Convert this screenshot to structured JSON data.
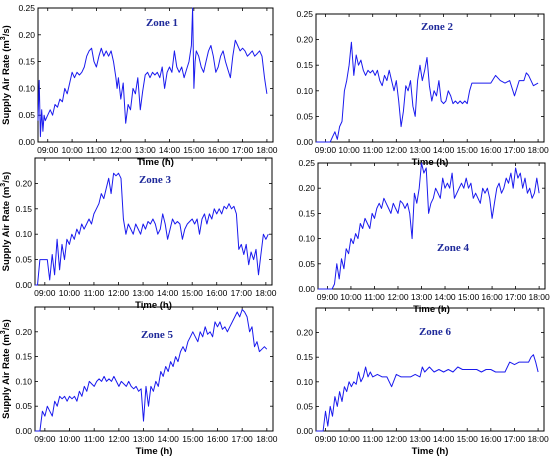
{
  "chart_data": [
    {
      "type": "line",
      "title": "Zone 1",
      "xlabel": "Time (h)",
      "ylabel": "Supply Air Rate (m³/s)",
      "ylabel_base": "Supply Air Rate (m",
      "ylabel_sup": "3",
      "ylabel_tail": "/s)",
      "xlim": [
        8.6,
        18.25
      ],
      "ylim": [
        0,
        0.25
      ],
      "xticks": [
        9,
        10,
        11,
        12,
        13,
        14,
        15,
        16,
        17,
        18
      ],
      "xtick_labels": [
        "09:00",
        "10:00",
        "11:00",
        "12:00",
        "13:00",
        "14:00",
        "15:00",
        "16:00",
        "17:00",
        "18:00"
      ],
      "yticks": [
        0,
        0.05,
        0.1,
        0.15,
        0.2,
        0.25
      ],
      "ytick_labels": [
        "0.00",
        "0.05",
        "0.10",
        "0.15",
        "0.20",
        "0.25"
      ],
      "x": [
        8.6,
        8.65,
        8.7,
        8.75,
        8.8,
        8.85,
        8.9,
        9.0,
        9.1,
        9.2,
        9.3,
        9.4,
        9.5,
        9.6,
        9.7,
        9.8,
        9.9,
        10.0,
        10.1,
        10.2,
        10.3,
        10.4,
        10.5,
        10.6,
        10.7,
        10.8,
        10.9,
        11.0,
        11.1,
        11.2,
        11.3,
        11.4,
        11.5,
        11.6,
        11.7,
        11.8,
        11.85,
        11.9,
        12.0,
        12.1,
        12.2,
        12.3,
        12.4,
        12.5,
        12.6,
        12.7,
        12.8,
        12.9,
        13.0,
        13.1,
        13.2,
        13.3,
        13.4,
        13.5,
        13.6,
        13.7,
        13.8,
        13.9,
        14.0,
        14.1,
        14.2,
        14.3,
        14.4,
        14.5,
        14.6,
        14.7,
        14.8,
        14.9,
        14.95,
        15.0,
        15.05,
        15.1,
        15.2,
        15.3,
        15.4,
        15.5,
        15.6,
        15.7,
        15.8,
        15.9,
        16.0,
        16.1,
        16.2,
        16.3,
        16.4,
        16.5,
        16.6,
        16.7,
        16.8,
        16.9,
        17.0,
        17.1,
        17.2,
        17.3,
        17.4,
        17.5,
        17.6,
        17.7,
        17.8,
        17.9,
        18.0
      ],
      "y": [
        0.04,
        0.115,
        0.01,
        0.06,
        0.02,
        0.05,
        0.04,
        0.05,
        0.06,
        0.05,
        0.07,
        0.065,
        0.08,
        0.075,
        0.1,
        0.09,
        0.11,
        0.13,
        0.12,
        0.13,
        0.125,
        0.13,
        0.14,
        0.16,
        0.17,
        0.175,
        0.15,
        0.14,
        0.16,
        0.175,
        0.16,
        0.17,
        0.16,
        0.17,
        0.15,
        0.12,
        0.1,
        0.12,
        0.08,
        0.11,
        0.035,
        0.07,
        0.06,
        0.1,
        0.09,
        0.12,
        0.06,
        0.095,
        0.125,
        0.13,
        0.12,
        0.13,
        0.125,
        0.13,
        0.12,
        0.14,
        0.1,
        0.13,
        0.14,
        0.13,
        0.17,
        0.14,
        0.13,
        0.14,
        0.12,
        0.135,
        0.15,
        0.18,
        0.25,
        0.1,
        0.15,
        0.17,
        0.16,
        0.14,
        0.13,
        0.15,
        0.17,
        0.18,
        0.16,
        0.13,
        0.14,
        0.16,
        0.17,
        0.15,
        0.135,
        0.12,
        0.16,
        0.19,
        0.18,
        0.17,
        0.175,
        0.17,
        0.16,
        0.165,
        0.17,
        0.16,
        0.165,
        0.17,
        0.16,
        0.12,
        0.09
      ]
    },
    {
      "type": "line",
      "title": "Zone 2",
      "xlabel": "Time (h)",
      "ylabel": "",
      "xlim": [
        8.6,
        18.25
      ],
      "ylim": [
        0,
        0.25
      ],
      "xticks": [
        9,
        10,
        11,
        12,
        13,
        14,
        15,
        16,
        17,
        18
      ],
      "xtick_labels": [
        "09:00",
        "10:00",
        "11:00",
        "12:00",
        "13:00",
        "14:00",
        "15:00",
        "16:00",
        "17:00",
        "18:00"
      ],
      "yticks": [
        0,
        0.05,
        0.1,
        0.15,
        0.2,
        0.25
      ],
      "ytick_labels": [
        "0.00",
        "0.05",
        "0.10",
        "0.15",
        "0.20",
        "0.25"
      ],
      "x": [
        8.6,
        9.2,
        9.3,
        9.4,
        9.5,
        9.6,
        9.7,
        9.8,
        9.9,
        10.0,
        10.1,
        10.2,
        10.3,
        10.4,
        10.5,
        10.6,
        10.7,
        10.8,
        10.9,
        11.0,
        11.1,
        11.2,
        11.3,
        11.4,
        11.5,
        11.6,
        11.7,
        11.8,
        11.9,
        12.0,
        12.1,
        12.2,
        12.3,
        12.4,
        12.5,
        12.6,
        12.7,
        12.8,
        12.9,
        13.0,
        13.1,
        13.2,
        13.3,
        13.4,
        13.5,
        13.6,
        13.7,
        13.8,
        13.9,
        14.0,
        14.1,
        14.2,
        14.3,
        14.4,
        14.5,
        14.6,
        14.7,
        14.8,
        14.9,
        15.0,
        15.1,
        15.2,
        16.0,
        16.2,
        16.4,
        16.6,
        16.8,
        17.0,
        17.2,
        17.4,
        17.5,
        17.6,
        17.8,
        18.0
      ],
      "y": [
        0,
        0,
        0.01,
        0.02,
        0.005,
        0.03,
        0.04,
        0.1,
        0.12,
        0.15,
        0.195,
        0.13,
        0.17,
        0.15,
        0.16,
        0.14,
        0.13,
        0.14,
        0.135,
        0.14,
        0.13,
        0.14,
        0.12,
        0.11,
        0.13,
        0.12,
        0.14,
        0.12,
        0.1,
        0.12,
        0.08,
        0.03,
        0.06,
        0.11,
        0.1,
        0.12,
        0.07,
        0.05,
        0.12,
        0.15,
        0.12,
        0.14,
        0.165,
        0.11,
        0.08,
        0.1,
        0.09,
        0.12,
        0.08,
        0.075,
        0.08,
        0.1,
        0.09,
        0.075,
        0.08,
        0.075,
        0.08,
        0.075,
        0.08,
        0.075,
        0.1,
        0.115,
        0.115,
        0.13,
        0.12,
        0.115,
        0.12,
        0.09,
        0.12,
        0.12,
        0.135,
        0.13,
        0.11,
        0.115
      ]
    },
    {
      "type": "line",
      "title": "Zone 3",
      "xlabel": "Time (h)",
      "ylabel": "Supply Air Rate (m³/s)",
      "ylabel_base": "Supply Air Rate (m",
      "ylabel_sup": "3",
      "ylabel_tail": "/s)",
      "xlim": [
        8.6,
        18.25
      ],
      "ylim": [
        0,
        0.25
      ],
      "xticks": [
        9,
        10,
        11,
        12,
        13,
        14,
        15,
        16,
        17,
        18
      ],
      "xtick_labels": [
        "09:00",
        "10:00",
        "11:00",
        "12:00",
        "13:00",
        "14:00",
        "15:00",
        "16:00",
        "17:00",
        "18:00"
      ],
      "yticks": [
        0,
        0.05,
        0.1,
        0.15,
        0.2
      ],
      "ytick_labels": [
        "0.00",
        "0.05",
        "0.10",
        "0.15",
        "0.20"
      ],
      "x": [
        8.6,
        8.7,
        8.8,
        9.0,
        9.1,
        9.2,
        9.3,
        9.4,
        9.5,
        9.6,
        9.7,
        9.8,
        9.9,
        10.0,
        10.1,
        10.2,
        10.3,
        10.4,
        10.5,
        10.6,
        10.7,
        10.8,
        10.9,
        11.0,
        11.1,
        11.2,
        11.3,
        11.4,
        11.5,
        11.6,
        11.7,
        11.8,
        11.9,
        12.0,
        12.1,
        12.2,
        12.3,
        12.4,
        12.5,
        12.6,
        12.7,
        12.8,
        12.9,
        13.0,
        13.1,
        13.2,
        13.3,
        13.4,
        13.5,
        13.6,
        13.7,
        13.8,
        13.9,
        14.0,
        14.1,
        14.2,
        14.3,
        14.4,
        14.5,
        14.6,
        14.7,
        14.8,
        14.9,
        15.0,
        15.1,
        15.2,
        15.3,
        15.4,
        15.5,
        15.6,
        15.7,
        15.8,
        15.9,
        16.0,
        16.1,
        16.2,
        16.3,
        16.4,
        16.5,
        16.6,
        16.7,
        16.8,
        16.9,
        17.0,
        17.1,
        17.2,
        17.3,
        17.4,
        17.5,
        17.6,
        17.7,
        17.8,
        17.9,
        18.0,
        18.1
      ],
      "y": [
        0,
        0,
        0.05,
        0.05,
        0.05,
        0.01,
        0.06,
        0.02,
        0.09,
        0.03,
        0.08,
        0.05,
        0.09,
        0.08,
        0.1,
        0.09,
        0.11,
        0.1,
        0.12,
        0.11,
        0.12,
        0.13,
        0.12,
        0.14,
        0.15,
        0.16,
        0.18,
        0.17,
        0.19,
        0.21,
        0.18,
        0.22,
        0.215,
        0.22,
        0.21,
        0.13,
        0.1,
        0.12,
        0.11,
        0.1,
        0.12,
        0.11,
        0.1,
        0.12,
        0.11,
        0.125,
        0.12,
        0.13,
        0.12,
        0.1,
        0.11,
        0.14,
        0.12,
        0.09,
        0.11,
        0.13,
        0.12,
        0.125,
        0.12,
        0.09,
        0.11,
        0.12,
        0.125,
        0.13,
        0.12,
        0.13,
        0.1,
        0.13,
        0.14,
        0.12,
        0.14,
        0.13,
        0.15,
        0.14,
        0.15,
        0.14,
        0.155,
        0.15,
        0.16,
        0.15,
        0.155,
        0.14,
        0.07,
        0.08,
        0.06,
        0.08,
        0.04,
        0.065,
        0.05,
        0.07,
        0.02,
        0.06,
        0.1,
        0.09,
        0.1
      ]
    },
    {
      "type": "line",
      "title": "Zone 4",
      "xlabel": "Time (h)",
      "ylabel": "",
      "xlim": [
        8.6,
        18.25
      ],
      "ylim": [
        0,
        0.25
      ],
      "xticks": [
        9,
        10,
        11,
        12,
        13,
        14,
        15,
        16,
        17,
        18
      ],
      "xtick_labels": [
        "09:00",
        "10:00",
        "11:00",
        "12:00",
        "13:00",
        "14:00",
        "15:00",
        "16:00",
        "17:00",
        "18:00"
      ],
      "yticks": [
        0,
        0.05,
        0.1,
        0.15,
        0.2,
        0.25
      ],
      "ytick_labels": [
        "0.00",
        "0.05",
        "0.10",
        "0.15",
        "0.20",
        "0.25"
      ],
      "x": [
        8.6,
        9.2,
        9.3,
        9.4,
        9.5,
        9.6,
        9.7,
        9.8,
        9.9,
        10.0,
        10.1,
        10.2,
        10.3,
        10.4,
        10.5,
        10.6,
        10.7,
        10.8,
        10.9,
        11.0,
        11.1,
        11.2,
        11.3,
        11.4,
        11.5,
        11.6,
        11.7,
        11.8,
        11.9,
        12.0,
        12.1,
        12.2,
        12.3,
        12.4,
        12.5,
        12.6,
        12.7,
        12.8,
        12.9,
        13.0,
        13.1,
        13.2,
        13.3,
        13.4,
        13.5,
        13.6,
        13.7,
        13.8,
        13.9,
        14.0,
        14.1,
        14.2,
        14.3,
        14.4,
        14.5,
        14.6,
        14.7,
        14.8,
        14.9,
        15.0,
        15.1,
        15.2,
        15.3,
        15.4,
        15.5,
        15.6,
        15.7,
        15.8,
        15.9,
        16.0,
        16.1,
        16.2,
        16.3,
        16.4,
        16.5,
        16.6,
        16.7,
        16.8,
        16.9,
        17.0,
        17.1,
        17.2,
        17.3,
        17.4,
        17.5,
        17.6,
        17.7,
        17.8,
        17.9,
        18.0
      ],
      "y": [
        0,
        0,
        0.01,
        0.05,
        0.02,
        0.06,
        0.04,
        0.08,
        0.07,
        0.1,
        0.09,
        0.11,
        0.1,
        0.13,
        0.12,
        0.14,
        0.13,
        0.12,
        0.15,
        0.14,
        0.16,
        0.17,
        0.16,
        0.18,
        0.17,
        0.16,
        0.15,
        0.17,
        0.16,
        0.15,
        0.175,
        0.17,
        0.16,
        0.17,
        0.15,
        0.1,
        0.19,
        0.17,
        0.2,
        0.25,
        0.23,
        0.24,
        0.15,
        0.17,
        0.18,
        0.2,
        0.19,
        0.18,
        0.22,
        0.2,
        0.21,
        0.2,
        0.23,
        0.18,
        0.19,
        0.2,
        0.21,
        0.2,
        0.22,
        0.2,
        0.21,
        0.18,
        0.19,
        0.18,
        0.17,
        0.2,
        0.19,
        0.2,
        0.18,
        0.14,
        0.17,
        0.2,
        0.21,
        0.19,
        0.2,
        0.22,
        0.21,
        0.23,
        0.2,
        0.24,
        0.22,
        0.23,
        0.2,
        0.22,
        0.19,
        0.2,
        0.18,
        0.19,
        0.22,
        0.19
      ]
    },
    {
      "type": "line",
      "title": "Zone 5",
      "xlabel": "Time (h)",
      "ylabel": "Supply Air Rate (m³/s)",
      "ylabel_base": "Supply Air Rate (m",
      "ylabel_sup": "3",
      "ylabel_tail": "/s)",
      "xlim": [
        8.6,
        18.25
      ],
      "ylim": [
        0,
        0.25
      ],
      "xticks": [
        9,
        10,
        11,
        12,
        13,
        14,
        15,
        16,
        17,
        18
      ],
      "xtick_labels": [
        "09:00",
        "10:00",
        "11:00",
        "12:00",
        "13:00",
        "14:00",
        "15:00",
        "16:00",
        "17:00",
        "18:00"
      ],
      "yticks": [
        0,
        0.05,
        0.1,
        0.15,
        0.2
      ],
      "ytick_labels": [
        "0.00",
        "0.05",
        "0.10",
        "0.15",
        "0.20"
      ],
      "x": [
        8.6,
        8.8,
        8.9,
        9.0,
        9.1,
        9.2,
        9.3,
        9.4,
        9.5,
        9.6,
        9.7,
        9.8,
        9.9,
        10.0,
        10.1,
        10.2,
        10.3,
        10.4,
        10.5,
        10.6,
        10.7,
        10.8,
        10.9,
        11.0,
        11.1,
        11.2,
        11.3,
        11.4,
        11.5,
        11.6,
        11.7,
        11.8,
        11.9,
        12.0,
        12.1,
        12.2,
        12.3,
        12.4,
        12.5,
        12.6,
        12.7,
        12.8,
        12.9,
        13.0,
        13.1,
        13.2,
        13.3,
        13.4,
        13.5,
        13.6,
        13.7,
        13.8,
        13.9,
        14.0,
        14.1,
        14.2,
        14.3,
        14.4,
        14.5,
        14.6,
        14.7,
        14.8,
        14.9,
        15.0,
        15.1,
        15.2,
        15.3,
        15.4,
        15.5,
        15.6,
        15.7,
        15.8,
        15.9,
        16.0,
        16.1,
        16.2,
        16.3,
        16.4,
        16.5,
        16.6,
        16.7,
        16.8,
        16.9,
        17.0,
        17.1,
        17.2,
        17.3,
        17.4,
        17.5,
        17.6,
        17.7,
        17.8,
        17.9,
        18.0
      ],
      "y": [
        0,
        0,
        0.04,
        0.03,
        0.05,
        0.04,
        0.03,
        0.06,
        0.05,
        0.07,
        0.065,
        0.07,
        0.06,
        0.07,
        0.065,
        0.07,
        0.06,
        0.08,
        0.07,
        0.09,
        0.08,
        0.1,
        0.095,
        0.09,
        0.1,
        0.105,
        0.1,
        0.11,
        0.1,
        0.105,
        0.1,
        0.11,
        0.1,
        0.09,
        0.1,
        0.095,
        0.09,
        0.1,
        0.09,
        0.085,
        0.09,
        0.08,
        0.085,
        0.02,
        0.09,
        0.05,
        0.09,
        0.08,
        0.1,
        0.09,
        0.12,
        0.11,
        0.13,
        0.12,
        0.14,
        0.13,
        0.15,
        0.14,
        0.16,
        0.17,
        0.16,
        0.18,
        0.19,
        0.2,
        0.19,
        0.18,
        0.2,
        0.19,
        0.21,
        0.195,
        0.2,
        0.19,
        0.22,
        0.21,
        0.22,
        0.205,
        0.21,
        0.2,
        0.21,
        0.22,
        0.23,
        0.24,
        0.23,
        0.245,
        0.24,
        0.23,
        0.2,
        0.21,
        0.17,
        0.18,
        0.16,
        0.165,
        0.17,
        0.165
      ]
    },
    {
      "type": "line",
      "title": "Zone 6",
      "xlabel": "Time (h)",
      "ylabel": "",
      "xlim": [
        8.6,
        18.25
      ],
      "ylim": [
        0,
        0.25
      ],
      "xticks": [
        9,
        10,
        11,
        12,
        13,
        14,
        15,
        16,
        17,
        18
      ],
      "xtick_labels": [
        "09:00",
        "10:00",
        "11:00",
        "12:00",
        "13:00",
        "14:00",
        "15:00",
        "16:00",
        "17:00",
        "18:00"
      ],
      "yticks": [
        0,
        0.05,
        0.1,
        0.15,
        0.2
      ],
      "ytick_labels": [
        "0.00",
        "0.05",
        "0.10",
        "0.15",
        "0.20"
      ],
      "x": [
        8.6,
        8.9,
        9.0,
        9.1,
        9.2,
        9.3,
        9.4,
        9.5,
        9.6,
        9.7,
        9.8,
        9.9,
        10.0,
        10.1,
        10.2,
        10.3,
        10.4,
        10.5,
        10.6,
        10.7,
        10.8,
        10.9,
        11.0,
        11.2,
        11.4,
        11.6,
        11.8,
        12.0,
        12.2,
        12.4,
        12.6,
        12.8,
        13.0,
        13.1,
        13.2,
        13.4,
        13.6,
        13.8,
        14.0,
        14.2,
        14.4,
        14.6,
        14.8,
        15.0,
        15.2,
        15.4,
        15.6,
        15.8,
        16.0,
        16.2,
        16.4,
        16.6,
        16.8,
        17.0,
        17.2,
        17.4,
        17.6,
        17.7,
        17.8,
        17.9,
        18.0
      ],
      "y": [
        0,
        0,
        0.04,
        0.01,
        0.05,
        0.03,
        0.07,
        0.05,
        0.08,
        0.06,
        0.09,
        0.08,
        0.1,
        0.09,
        0.1,
        0.095,
        0.12,
        0.1,
        0.11,
        0.13,
        0.11,
        0.12,
        0.11,
        0.115,
        0.11,
        0.11,
        0.09,
        0.115,
        0.11,
        0.11,
        0.11,
        0.115,
        0.11,
        0.13,
        0.12,
        0.13,
        0.12,
        0.125,
        0.12,
        0.125,
        0.12,
        0.13,
        0.125,
        0.125,
        0.125,
        0.125,
        0.12,
        0.125,
        0.125,
        0.12,
        0.12,
        0.12,
        0.14,
        0.135,
        0.14,
        0.14,
        0.14,
        0.15,
        0.155,
        0.14,
        0.12
      ]
    }
  ]
}
